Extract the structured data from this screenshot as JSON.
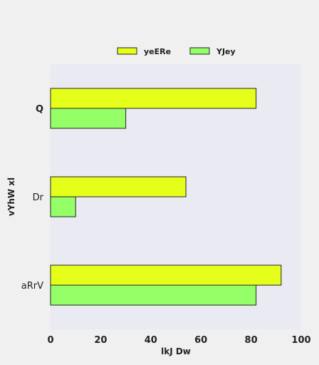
{
  "chart_data": {
    "type": "bar",
    "orientation": "horizontal",
    "categories": [
      "Q",
      "Dr",
      "aRrV"
    ],
    "series": [
      {
        "name": "yeERe",
        "values": [
          82,
          54,
          92
        ],
        "color": "#e6ff1a"
      },
      {
        "name": "YJey",
        "values": [
          30,
          10,
          82
        ],
        "color": "#94ff66"
      }
    ],
    "xlabel": "lkJ Dw",
    "ylabel": "vYhW xl",
    "xlim": [
      0,
      100
    ],
    "xticks": [
      0,
      20,
      40,
      60,
      80,
      100
    ],
    "grid": false,
    "legend_position": "top",
    "plot_background": "#eaeaf2"
  }
}
